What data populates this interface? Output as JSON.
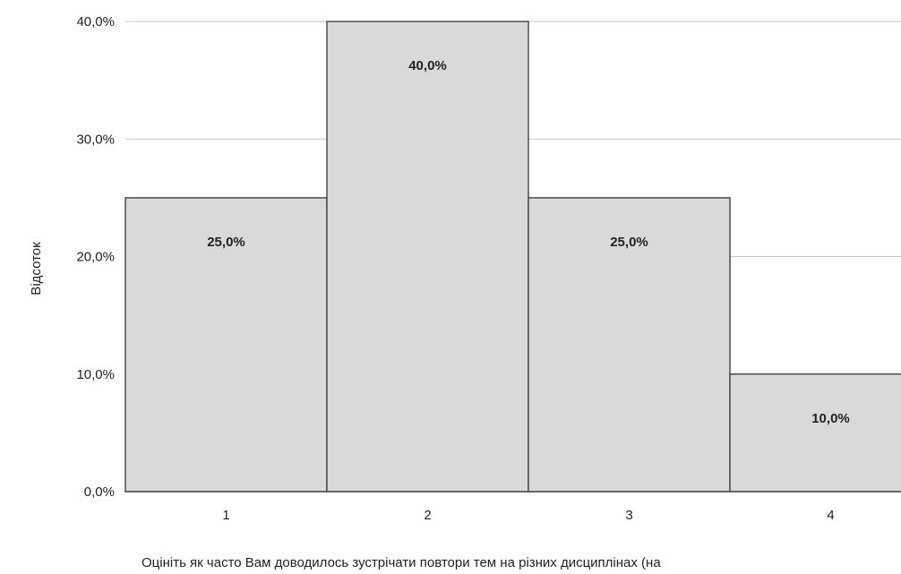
{
  "chart_data": {
    "type": "bar",
    "title": "",
    "xlabel": "Оцініть як часто Вам доводилось зустрічати повтори тем на різних дисциплінах (на",
    "ylabel": "Відсоток",
    "categories": [
      "1",
      "2",
      "3",
      "4"
    ],
    "values": [
      25.0,
      40.0,
      25.0,
      10.0
    ],
    "value_labels": [
      "25,0%",
      "40,0%",
      "25,0%",
      "10,0%"
    ],
    "y_ticks": [
      0,
      10,
      20,
      30,
      40
    ],
    "y_tick_labels": [
      "0,0%",
      "10,0%",
      "20,0%",
      "30,0%",
      "40,0%"
    ],
    "ylim": [
      0,
      40
    ],
    "grid": true,
    "legend": "none",
    "colors": {
      "bar_fill": "#d9d9d9",
      "bar_stroke": "#4d4d4d",
      "grid": "#c8c8c8",
      "axis": "#555555"
    }
  }
}
